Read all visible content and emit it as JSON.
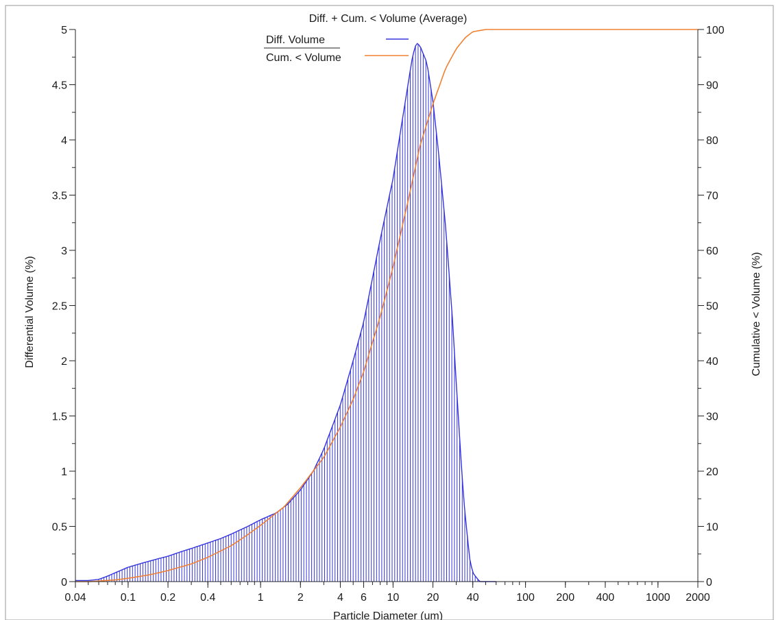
{
  "chart_data": {
    "type": "line",
    "title": "Diff. + Cum. < Volume (Average)",
    "xlabel": "Particle Diameter (um)",
    "ylabel_left": "Differential Volume (%)",
    "ylabel_right": "Cumulative < Volume (%)",
    "x_scale": "log",
    "xlim": [
      0.04,
      2000
    ],
    "ylim_left": [
      0,
      5
    ],
    "ylim_right": [
      0,
      100
    ],
    "x_ticks": [
      "0.04",
      "0.1",
      "0.2",
      "0.4",
      "1",
      "2",
      "4",
      "6",
      "10",
      "20",
      "40",
      "100",
      "200",
      "400",
      "1000",
      "2000"
    ],
    "y_ticks_left": [
      "0",
      "0.5",
      "1",
      "1.5",
      "2",
      "2.5",
      "3",
      "3.5",
      "4",
      "4.5",
      "5"
    ],
    "y_ticks_right": [
      "0",
      "10",
      "20",
      "30",
      "40",
      "50",
      "60",
      "70",
      "80",
      "90",
      "100"
    ],
    "legend": {
      "placement": "top-center",
      "entries": [
        "Diff. Volume",
        "Cum. < Volume"
      ]
    },
    "series": [
      {
        "name": "Diff. Volume",
        "axis": "left",
        "style": "vertical-hatched-area",
        "color": "#3333dd",
        "x": [
          0.04,
          0.05,
          0.06,
          0.07,
          0.08,
          0.1,
          0.13,
          0.16,
          0.2,
          0.25,
          0.3,
          0.4,
          0.5,
          0.6,
          0.8,
          1,
          1.3,
          1.6,
          2,
          2.5,
          3,
          4,
          5,
          6,
          7,
          8,
          10,
          12,
          14,
          15,
          16,
          18,
          20,
          22,
          25,
          28,
          30,
          33,
          35,
          38,
          40,
          45
        ],
        "y": [
          0.01,
          0.01,
          0.02,
          0.05,
          0.08,
          0.13,
          0.17,
          0.2,
          0.23,
          0.27,
          0.3,
          0.35,
          0.39,
          0.43,
          0.5,
          0.56,
          0.62,
          0.7,
          0.83,
          1.0,
          1.2,
          1.6,
          2.0,
          2.35,
          2.75,
          3.1,
          3.65,
          4.25,
          4.75,
          4.88,
          4.85,
          4.7,
          4.35,
          3.9,
          3.2,
          2.4,
          1.8,
          1.0,
          0.6,
          0.2,
          0.08,
          0.0
        ]
      },
      {
        "name": "Cum. < Volume",
        "axis": "right",
        "style": "line",
        "color": "#f08030",
        "x": [
          0.04,
          0.05,
          0.06,
          0.08,
          0.1,
          0.15,
          0.2,
          0.3,
          0.4,
          0.6,
          0.8,
          1,
          1.5,
          2,
          3,
          4,
          5,
          6,
          8,
          10,
          13,
          16,
          20,
          25,
          30,
          35,
          40,
          50,
          100,
          1000,
          2000
        ],
        "y": [
          0,
          0,
          0.1,
          0.3,
          0.6,
          1.3,
          2.0,
          3.2,
          4.4,
          6.5,
          8.5,
          10.2,
          13.5,
          17.0,
          22.5,
          28,
          33,
          38,
          48,
          57,
          69,
          79,
          86.5,
          93,
          96.5,
          98.5,
          99.6,
          100,
          100,
          100,
          100
        ]
      }
    ]
  }
}
